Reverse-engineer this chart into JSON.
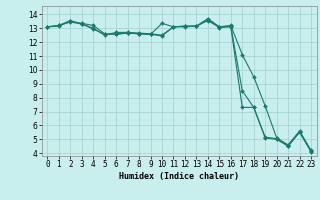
{
  "title": "",
  "xlabel": "Humidex (Indice chaleur)",
  "background_color": "#c8eeee",
  "grid_color": "#aad4d4",
  "line_color": "#1a7a6e",
  "xlim": [
    -0.5,
    23.5
  ],
  "ylim": [
    3.8,
    14.6
  ],
  "yticks": [
    4,
    5,
    6,
    7,
    8,
    9,
    10,
    11,
    12,
    13,
    14
  ],
  "xticks": [
    0,
    1,
    2,
    3,
    4,
    5,
    6,
    7,
    8,
    9,
    10,
    11,
    12,
    13,
    14,
    15,
    16,
    17,
    18,
    19,
    20,
    21,
    22,
    23
  ],
  "series": [
    [
      13.1,
      13.15,
      13.5,
      13.35,
      13.2,
      12.6,
      12.55,
      12.65,
      12.6,
      12.55,
      13.35,
      13.1,
      13.15,
      13.15,
      13.7,
      13.1,
      13.2,
      11.1,
      9.5,
      7.4,
      5.1,
      4.6,
      5.6,
      4.2
    ],
    [
      13.1,
      13.2,
      13.55,
      13.3,
      13.0,
      12.5,
      12.7,
      12.7,
      12.65,
      12.6,
      12.5,
      13.1,
      13.15,
      13.15,
      13.6,
      13.1,
      13.15,
      8.5,
      7.3,
      5.15,
      5.05,
      4.55,
      5.55,
      4.15
    ],
    [
      13.1,
      13.2,
      13.45,
      13.3,
      12.95,
      12.55,
      12.6,
      12.65,
      12.6,
      12.55,
      12.45,
      13.1,
      13.1,
      13.15,
      13.55,
      13.05,
      13.1,
      7.3,
      7.3,
      5.1,
      5.0,
      4.5,
      5.5,
      4.1
    ]
  ],
  "markersize": 2.0,
  "linewidth": 0.8,
  "tick_labelsize": 5.5,
  "xlabel_fontsize": 6.0
}
